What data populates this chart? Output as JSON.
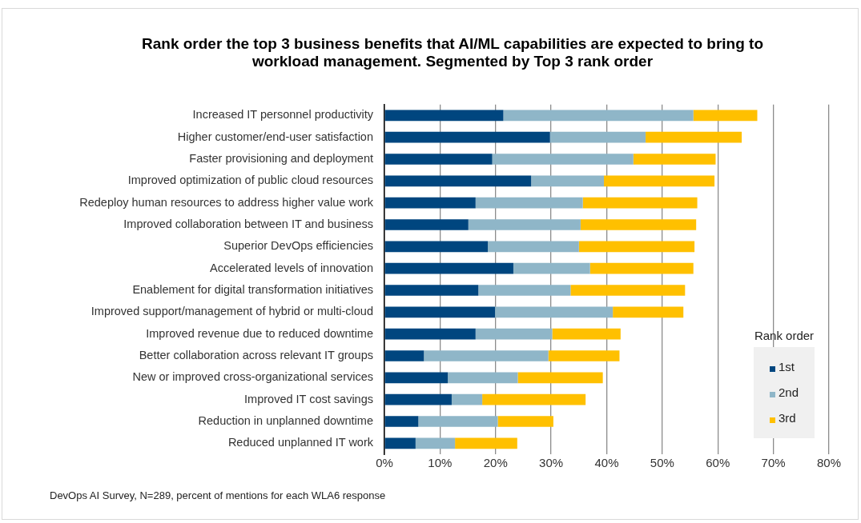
{
  "chart_data": {
    "type": "bar",
    "orientation": "horizontal",
    "stacked": true,
    "title": "Rank order the top 3 business benefits that AI/ML capabilities are expected to bring to workload management. Segmented by Top 3 rank order",
    "categories": [
      "Increased IT personnel productivity",
      "Higher customer/end-user satisfaction",
      "Faster provisioning and deployment",
      "Improved optimization of public cloud resources",
      "Redeploy human resources to address higher value work",
      "Improved collaboration between IT and business",
      "Superior DevOps efficiencies",
      "Accelerated levels of innovation",
      "Enablement for digital transformation initiatives",
      "Improved support/management of hybrid or multi-cloud",
      "Improved revenue due to reduced downtime",
      "Better collaboration across relevant IT groups",
      "New or improved cross-organizational services",
      "Improved IT cost savings",
      "Reduction in unplanned downtime",
      "Reduced unplanned IT work"
    ],
    "series": [
      {
        "name": "1st",
        "color": "#00467f",
        "values": [
          21.4,
          29.8,
          19.4,
          26.4,
          16.4,
          15.1,
          18.6,
          23.2,
          16.9,
          19.9,
          16.4,
          7.1,
          11.4,
          12.1,
          6.1,
          5.6
        ]
      },
      {
        "name": "2nd",
        "color": "#8fb6c8",
        "values": [
          34.2,
          17.2,
          25.4,
          13.1,
          19.3,
          20.2,
          16.4,
          13.8,
          16.6,
          21.2,
          13.8,
          22.4,
          12.6,
          5.5,
          14.3,
          7.1
        ]
      },
      {
        "name": "3rd",
        "color": "#ffc000",
        "values": [
          11.5,
          17.3,
          14.8,
          19.9,
          20.6,
          20.8,
          20.8,
          18.6,
          20.6,
          12.7,
          12.3,
          12.8,
          15.3,
          18.6,
          10.0,
          11.2
        ]
      }
    ],
    "xlim": [
      0,
      80
    ],
    "xticks": [
      {
        "value": 0,
        "label": "0%"
      },
      {
        "value": 10,
        "label": "10%"
      },
      {
        "value": 20,
        "label": "20%"
      },
      {
        "value": 30,
        "label": "30%"
      },
      {
        "value": 40,
        "label": "40%"
      },
      {
        "value": 50,
        "label": "50%"
      },
      {
        "value": 60,
        "label": "60%"
      },
      {
        "value": 70,
        "label": "70%"
      },
      {
        "value": 80,
        "label": "80%"
      }
    ],
    "grid": "x",
    "legend": "bottom right",
    "legend_title": "Rank order",
    "annotations": [
      "DevOps AI Survey, N=289, percent of mentions for each WLA6 response"
    ]
  }
}
